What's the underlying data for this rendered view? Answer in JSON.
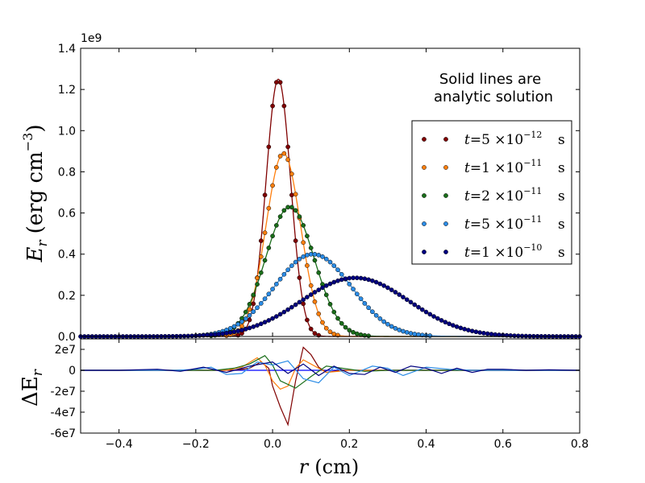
{
  "chart_data": {
    "type": "line",
    "top_panel": {
      "ylabel": "E_r (erg cm^-3)",
      "ylabel_main": "E",
      "ylabel_sub": "r",
      "ylabel_units": "(erg cm",
      "ylabel_exp": "−3",
      "ylabel_close": ")",
      "yscale_label": "1e9",
      "ylim": [
        0,
        1.4
      ],
      "yticks": [
        0.0,
        0.2,
        0.4,
        0.6,
        0.8,
        1.0,
        1.2,
        1.4
      ],
      "ytick_labels": [
        "0.0",
        "0.2",
        "0.4",
        "0.6",
        "0.8",
        "1.0",
        "1.2",
        "1.4"
      ],
      "annotation": [
        "Solid lines are",
        "analytic solution"
      ],
      "legend_position": "upper-right"
    },
    "bottom_panel": {
      "ylabel_main": "ΔE",
      "ylabel_sub": "r",
      "ylim": [
        -6,
        3
      ],
      "yticks": [
        2,
        0,
        -2,
        -4,
        -6
      ],
      "ytick_labels": [
        "2e7",
        "0",
        "-2e7",
        "-4e7",
        "-6e7"
      ]
    },
    "xlim": [
      -0.5,
      0.8
    ],
    "xticks": [
      -0.4,
      -0.2,
      0.0,
      0.2,
      0.4,
      0.6,
      0.8
    ],
    "xtick_labels": [
      "−0.4",
      "−0.2",
      "0.0",
      "0.2",
      "0.4",
      "0.6",
      "0.8"
    ],
    "xlabel_var": "r",
    "xlabel_units": "(cm)",
    "series": [
      {
        "name": "t=5×10^-12 s",
        "legend_prefix": "t=5 ×10",
        "legend_exp": "−12",
        "legend_unit": "s",
        "color": "#800000",
        "peak": 1.25,
        "center": 0.015,
        "sigma": 0.032
      },
      {
        "name": "t=1×10^-11 s",
        "legend_prefix": "t=1 ×10",
        "legend_exp": "−11",
        "legend_unit": "s",
        "color": "#ff7f0e",
        "peak": 0.89,
        "center": 0.028,
        "sigma": 0.045
      },
      {
        "name": "t=2×10^-11 s",
        "legend_prefix": "t=2 ×10",
        "legend_exp": "−11",
        "legend_unit": "s",
        "color": "#1a6e1a",
        "peak": 0.63,
        "center": 0.045,
        "sigma": 0.063
      },
      {
        "name": "t=5×10^-11 s",
        "legend_prefix": "t=5 ×10",
        "legend_exp": "−11",
        "legend_unit": "s",
        "color": "#2b8ce6",
        "peak": 0.4,
        "center": 0.105,
        "sigma": 0.1
      },
      {
        "name": "t=1×10^-10 s",
        "legend_prefix": "t=1 ×10",
        "legend_exp": "−10",
        "legend_unit": "s",
        "color": "#00007f",
        "peak": 0.285,
        "center": 0.215,
        "sigma": 0.14
      }
    ],
    "residual_series": [
      {
        "name": "t=5×10^-12 s",
        "color": "#800000",
        "r": [
          -0.1,
          -0.06,
          -0.03,
          -0.01,
          0.0,
          0.02,
          0.04,
          0.06,
          0.08,
          0.1,
          0.12,
          0.14,
          0.18
        ],
        "dE": [
          0,
          0.2,
          0.8,
          0.2,
          -1.5,
          -3.5,
          -5.2,
          -1.0,
          2.2,
          1.5,
          0.3,
          -0.2,
          0
        ]
      },
      {
        "name": "t=1×10^-11 s",
        "color": "#ff7f0e",
        "r": [
          -0.12,
          -0.08,
          -0.04,
          -0.02,
          0.0,
          0.02,
          0.04,
          0.06,
          0.08,
          0.1,
          0.14,
          0.2
        ],
        "dE": [
          0,
          0.3,
          1.2,
          0.5,
          -1.0,
          -1.8,
          -1.5,
          0.2,
          1.0,
          0.6,
          -0.2,
          0
        ]
      },
      {
        "name": "t=2×10^-11 s",
        "color": "#1a6e1a",
        "r": [
          -0.15,
          -0.1,
          -0.06,
          -0.02,
          0.0,
          0.02,
          0.06,
          0.1,
          0.14,
          0.18,
          0.24,
          0.3
        ],
        "dE": [
          0,
          0.2,
          0.6,
          1.4,
          0.5,
          -1.0,
          -1.7,
          -0.6,
          0.4,
          0.2,
          -0.1,
          0
        ]
      },
      {
        "name": "t=5×10^-11 s",
        "color": "#2b8ce6",
        "r": [
          -0.25,
          -0.2,
          -0.16,
          -0.12,
          -0.08,
          -0.04,
          0.0,
          0.04,
          0.08,
          0.12,
          0.16,
          0.2,
          0.26,
          0.3,
          0.34,
          0.4,
          0.46,
          0.52
        ],
        "dE": [
          0,
          0.1,
          0.3,
          -0.4,
          -0.3,
          0.8,
          0.5,
          0.9,
          -0.8,
          -1.2,
          0.3,
          -0.5,
          0.4,
          0.2,
          -0.5,
          0.3,
          0.1,
          0
        ]
      },
      {
        "name": "t=1×10^-10 s",
        "color": "#00007f",
        "r": [
          -0.4,
          -0.3,
          -0.24,
          -0.18,
          -0.12,
          -0.06,
          0.0,
          0.04,
          0.08,
          0.12,
          0.16,
          0.2,
          0.24,
          0.28,
          0.32,
          0.36,
          0.4,
          0.44,
          0.48,
          0.52,
          0.56,
          0.6,
          0.66,
          0.72,
          0.8
        ],
        "dE": [
          0,
          0.1,
          -0.1,
          0.3,
          -0.2,
          0.4,
          0.8,
          -0.3,
          0.6,
          -0.5,
          0.4,
          -0.3,
          -0.4,
          0.3,
          -0.2,
          0.4,
          0.2,
          -0.3,
          0.2,
          -0.2,
          0.1,
          0.1,
          0.0,
          0.05,
          0
        ]
      }
    ]
  }
}
